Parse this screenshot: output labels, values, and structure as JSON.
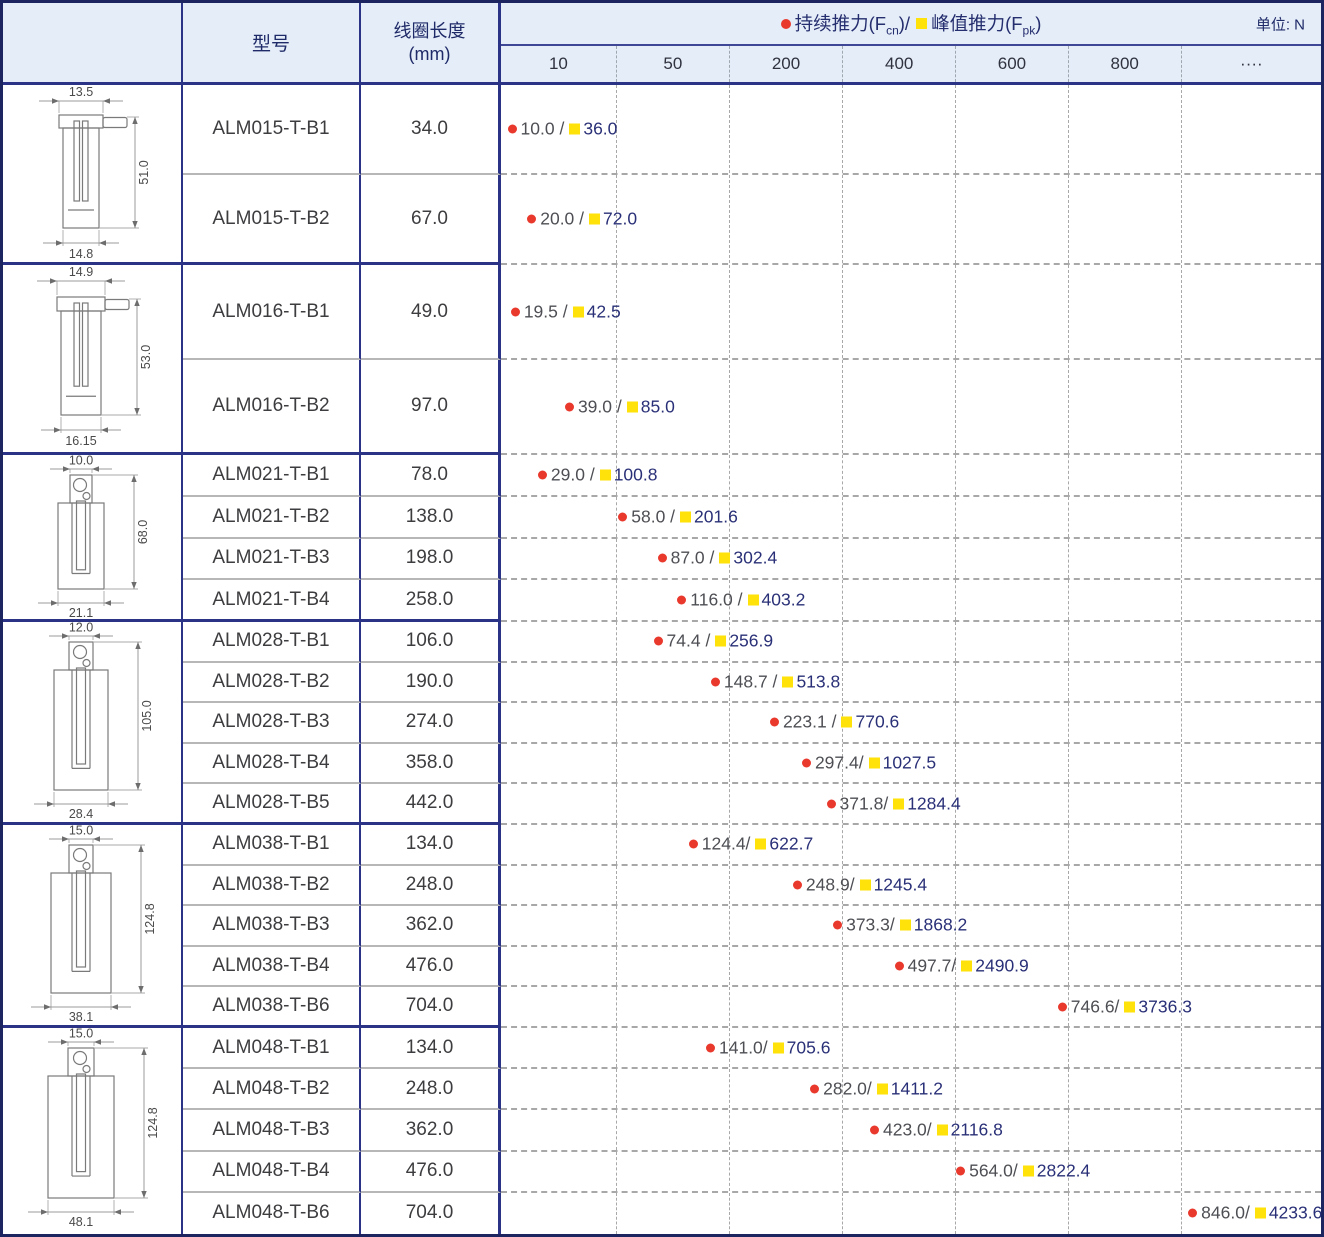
{
  "header": {
    "model_col": "型号",
    "coil_col": "线圈长度",
    "coil_unit": "(mm)",
    "legend_fcn_pre": "持续推力(F",
    "legend_fcn_sub": "cn",
    "legend_fcn_post": ")",
    "legend_sep": " / ",
    "legend_fpk_pre": "峰值推力(F",
    "legend_fpk_sub": "pk",
    "legend_fpk_post": ")",
    "unit_label": "单位: N",
    "ticks": [
      "10",
      "50",
      "200",
      "400",
      "600",
      "800",
      "····"
    ]
  },
  "colors": {
    "accent_red": "#e9392d",
    "accent_yellow": "#ffe20a",
    "navy_text": "#2a3077",
    "border_navy": "#2a3386",
    "header_bg": "#e4edf8",
    "grid_gray": "#a8a8a8"
  },
  "groups": [
    {
      "drawing": {
        "variant": "pin",
        "dim_top": "13.5",
        "dim_height": "51.0",
        "dim_bottom": "14.8"
      },
      "rows": [
        {
          "model": "ALM015-T-B1",
          "coil": "34.0",
          "fcn": 10.0,
          "fpk": 36.0,
          "fcn_text": "10.0 /",
          "fpk_text": "36.0",
          "offset_pct": 0.8
        },
        {
          "model": "ALM015-T-B2",
          "coil": "67.0",
          "fcn": 20.0,
          "fpk": 72.0,
          "fcn_text": "20.0 /",
          "fpk_text": "72.0",
          "offset_pct": 3.2
        }
      ]
    },
    {
      "drawing": {
        "variant": "pin",
        "dim_top": "14.9",
        "dim_height": "53.0",
        "dim_bottom": "16.15"
      },
      "rows": [
        {
          "model": "ALM016-T-B1",
          "coil": "49.0",
          "fcn": 19.5,
          "fpk": 42.5,
          "fcn_text": "19.5 /",
          "fpk_text": "42.5",
          "offset_pct": 1.2
        },
        {
          "model": "ALM016-T-B2",
          "coil": "97.0",
          "fcn": 39.0,
          "fpk": 85.0,
          "fcn_text": "39.0 /",
          "fpk_text": "85.0",
          "offset_pct": 7.8
        }
      ]
    },
    {
      "drawing": {
        "variant": "holes",
        "dim_top": "10.0",
        "dim_height": "68.0",
        "dim_bottom": "21.1"
      },
      "rows": [
        {
          "model": "ALM021-T-B1",
          "coil": "78.0",
          "fcn": 29.0,
          "fpk": 100.8,
          "fcn_text": "29.0 /",
          "fpk_text": "100.8",
          "offset_pct": 4.5
        },
        {
          "model": "ALM021-T-B2",
          "coil": "138.0",
          "fcn": 58.0,
          "fpk": 201.6,
          "fcn_text": "58.0 /",
          "fpk_text": "201.6",
          "offset_pct": 14.3
        },
        {
          "model": "ALM021-T-B3",
          "coil": "198.0",
          "fcn": 87.0,
          "fpk": 302.4,
          "fcn_text": "87.0 /",
          "fpk_text": "302.4",
          "offset_pct": 19.1
        },
        {
          "model": "ALM021-T-B4",
          "coil": "258.0",
          "fcn": 116.0,
          "fpk": 403.2,
          "fcn_text": "116.0 /",
          "fpk_text": "403.2",
          "offset_pct": 21.5
        }
      ]
    },
    {
      "drawing": {
        "variant": "holes",
        "dim_top": "12.0",
        "dim_height": "105.0",
        "dim_bottom": "28.4"
      },
      "rows": [
        {
          "model": "ALM028-T-B1",
          "coil": "106.0",
          "fcn": 74.4,
          "fpk": 256.9,
          "fcn_text": "74.4 /",
          "fpk_text": "256.9",
          "offset_pct": 18.6
        },
        {
          "model": "ALM028-T-B2",
          "coil": "190.0",
          "fcn": 148.7,
          "fpk": 513.8,
          "fcn_text": "148.7 /",
          "fpk_text": "513.8",
          "offset_pct": 25.6
        },
        {
          "model": "ALM028-T-B3",
          "coil": "274.0",
          "fcn": 223.1,
          "fpk": 770.6,
          "fcn_text": "223.1 /",
          "fpk_text": "770.6",
          "offset_pct": 32.8
        },
        {
          "model": "ALM028-T-B4",
          "coil": "358.0",
          "fcn": 297.4,
          "fpk": 1027.5,
          "fcn_text": "297.4/",
          "fpk_text": "1027.5",
          "offset_pct": 36.7
        },
        {
          "model": "ALM028-T-B5",
          "coil": "442.0",
          "fcn": 371.8,
          "fpk": 1284.4,
          "fcn_text": "371.8/",
          "fpk_text": "1284.4",
          "offset_pct": 39.7
        }
      ]
    },
    {
      "drawing": {
        "variant": "holes",
        "dim_top": "15.0",
        "dim_height": "124.8",
        "dim_bottom": "38.1"
      },
      "rows": [
        {
          "model": "ALM038-T-B1",
          "coil": "134.0",
          "fcn": 124.4,
          "fpk": 622.7,
          "fcn_text": "124.4/",
          "fpk_text": "622.7",
          "offset_pct": 22.9
        },
        {
          "model": "ALM038-T-B2",
          "coil": "248.0",
          "fcn": 248.9,
          "fpk": 1245.4,
          "fcn_text": "248.9/",
          "fpk_text": "1245.4",
          "offset_pct": 35.6
        },
        {
          "model": "ALM038-T-B3",
          "coil": "362.0",
          "fcn": 373.3,
          "fpk": 1868.2,
          "fcn_text": "373.3/",
          "fpk_text": "1868.2",
          "offset_pct": 40.5
        },
        {
          "model": "ALM038-T-B4",
          "coil": "476.0",
          "fcn": 497.7,
          "fpk": 2490.9,
          "fcn_text": "497.7/",
          "fpk_text": "2490.9",
          "offset_pct": 48.0
        },
        {
          "model": "ALM038-T-B6",
          "coil": "704.0",
          "fcn": 746.6,
          "fpk": 3736.3,
          "fcn_text": "746.6/",
          "fpk_text": "3736.3",
          "offset_pct": 67.9
        }
      ]
    },
    {
      "drawing": {
        "variant": "holes",
        "dim_top": "15.0",
        "dim_height": "124.8",
        "dim_bottom": "48.1"
      },
      "rows": [
        {
          "model": "ALM048-T-B1",
          "coil": "134.0",
          "fcn": 141.0,
          "fpk": 705.6,
          "fcn_text": "141.0/",
          "fpk_text": "705.6",
          "offset_pct": 25.0
        },
        {
          "model": "ALM048-T-B2",
          "coil": "248.0",
          "fcn": 282.0,
          "fpk": 1411.2,
          "fcn_text": "282.0/",
          "fpk_text": "1411.2",
          "offset_pct": 37.7
        },
        {
          "model": "ALM048-T-B3",
          "coil": "362.0",
          "fcn": 423.0,
          "fpk": 2116.8,
          "fcn_text": "423.0/",
          "fpk_text": "2116.8",
          "offset_pct": 45.0
        },
        {
          "model": "ALM048-T-B4",
          "coil": "476.0",
          "fcn": 564.0,
          "fpk": 2822.4,
          "fcn_text": "564.0/",
          "fpk_text": "2822.4",
          "offset_pct": 55.5
        },
        {
          "model": "ALM048-T-B6",
          "coil": "704.0",
          "fcn": 846.0,
          "fpk": 4233.6,
          "fcn_text": "846.0/",
          "fpk_text": "4233.6",
          "offset_pct": 83.8
        }
      ]
    }
  ],
  "chart_data": {
    "type": "scatter",
    "title": "持续推力(Fcn) / 峰值推力(Fpk)",
    "unit": "N",
    "x_axis_ticks": [
      10,
      50,
      200,
      400,
      600,
      800
    ],
    "x_axis_note": "non-linear force axis, dashed gridlines at tick boundaries",
    "legend_position": "top",
    "categories": [
      "ALM015-T-B1",
      "ALM015-T-B2",
      "ALM016-T-B1",
      "ALM016-T-B2",
      "ALM021-T-B1",
      "ALM021-T-B2",
      "ALM021-T-B3",
      "ALM021-T-B4",
      "ALM028-T-B1",
      "ALM028-T-B2",
      "ALM028-T-B3",
      "ALM028-T-B4",
      "ALM028-T-B5",
      "ALM038-T-B1",
      "ALM038-T-B2",
      "ALM038-T-B3",
      "ALM038-T-B4",
      "ALM038-T-B6",
      "ALM048-T-B1",
      "ALM048-T-B2",
      "ALM048-T-B3",
      "ALM048-T-B4",
      "ALM048-T-B6"
    ],
    "coil_length_mm": [
      34.0,
      67.0,
      49.0,
      97.0,
      78.0,
      138.0,
      198.0,
      258.0,
      106.0,
      190.0,
      274.0,
      358.0,
      442.0,
      134.0,
      248.0,
      362.0,
      476.0,
      704.0,
      134.0,
      248.0,
      362.0,
      476.0,
      704.0
    ],
    "series": [
      {
        "name": "持续推力(Fcn)",
        "marker": "red-dot",
        "color": "#e9392d",
        "values": [
          10.0,
          20.0,
          19.5,
          39.0,
          29.0,
          58.0,
          87.0,
          116.0,
          74.4,
          148.7,
          223.1,
          297.4,
          371.8,
          124.4,
          248.9,
          373.3,
          497.7,
          746.6,
          141.0,
          282.0,
          423.0,
          564.0,
          846.0
        ]
      },
      {
        "name": "峰值推力(Fpk)",
        "marker": "yellow-square",
        "color": "#ffe20a",
        "values": [
          36.0,
          72.0,
          42.5,
          85.0,
          100.8,
          201.6,
          302.4,
          403.2,
          256.9,
          513.8,
          770.6,
          1027.5,
          1284.4,
          622.7,
          1245.4,
          1868.2,
          2490.9,
          3736.3,
          705.6,
          1411.2,
          2116.8,
          2822.4,
          4233.6
        ]
      }
    ]
  }
}
